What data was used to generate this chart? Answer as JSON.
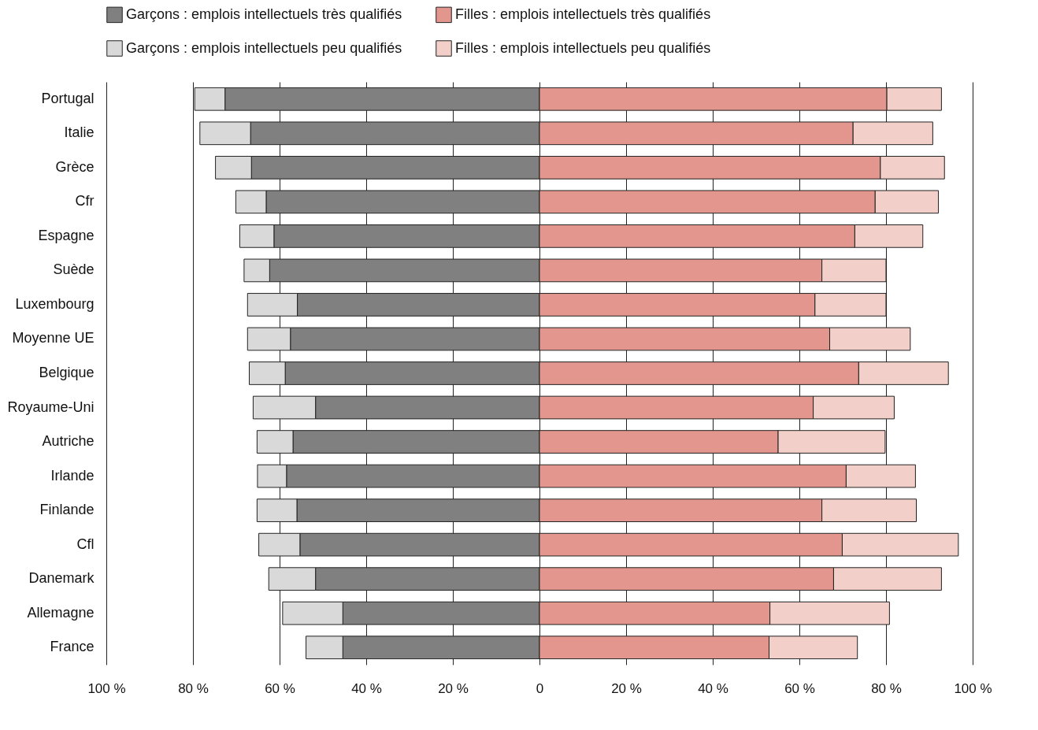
{
  "chart_data": {
    "type": "bar",
    "orientation": "horizontal",
    "stacked": true,
    "grid": "x",
    "legend": "top",
    "categories": [
      "Portugal",
      "Italie",
      "Grèce",
      "Cfr",
      "Espagne",
      "Suède",
      "Luxembourg",
      "Moyenne UE",
      "Belgique",
      "Royaume-Uni",
      "Autriche",
      "Irlande",
      "Finlande",
      "Cfl",
      "Danemark",
      "Allemagne",
      "France"
    ],
    "xlim": [
      -100,
      100
    ],
    "xticks": [
      {
        "value": -100,
        "label": "100 %"
      },
      {
        "value": -80,
        "label": "80 %"
      },
      {
        "value": -60,
        "label": "60 %"
      },
      {
        "value": -40,
        "label": "40 %"
      },
      {
        "value": -20,
        "label": "20 %"
      },
      0,
      {
        "value": 20,
        "label": "20 %"
      },
      {
        "value": 40,
        "label": "40 %"
      },
      {
        "value": 60,
        "label": "60 %"
      },
      {
        "value": 80,
        "label": "80 %"
      },
      {
        "value": 100,
        "label": "100 %"
      }
    ],
    "series": [
      {
        "name": "Garçons : emplois intellectuels très qualifiés",
        "color": "#808080",
        "values": [
          -72.6,
          -66.7,
          -66.5,
          -63.1,
          -61.3,
          -62.3,
          -55.9,
          -57.5,
          -58.7,
          -51.7,
          -56.9,
          -58.4,
          -56.0,
          -55.3,
          -51.7,
          -45.4,
          -45.4
        ]
      },
      {
        "name": "Filles : emplois intellectuels très qualifiés",
        "color": "#e3968d",
        "values": [
          80.2,
          72.4,
          78.7,
          77.5,
          72.8,
          65.2,
          63.6,
          67.0,
          73.7,
          63.2,
          55.1,
          70.8,
          65.2,
          69.9,
          67.9,
          53.2,
          53.0
        ]
      },
      {
        "name": "Garçons : emplois intellectuels peu qualifiés",
        "color": "#d9d9d9",
        "values": [
          -7.0,
          -11.7,
          -8.3,
          -7.0,
          -7.9,
          -5.9,
          -11.5,
          -9.9,
          -8.3,
          -14.4,
          -8.3,
          -6.7,
          -9.2,
          -9.5,
          -10.8,
          -13.9,
          -8.5
        ]
      },
      {
        "name": "Filles : emplois intellectuels peu qualifiés",
        "color": "#f2cfc8",
        "values": [
          12.6,
          18.4,
          14.8,
          14.6,
          15.7,
          14.8,
          16.4,
          18.6,
          20.7,
          18.7,
          24.7,
          16.0,
          21.8,
          26.8,
          24.9,
          27.6,
          20.4
        ]
      }
    ]
  }
}
